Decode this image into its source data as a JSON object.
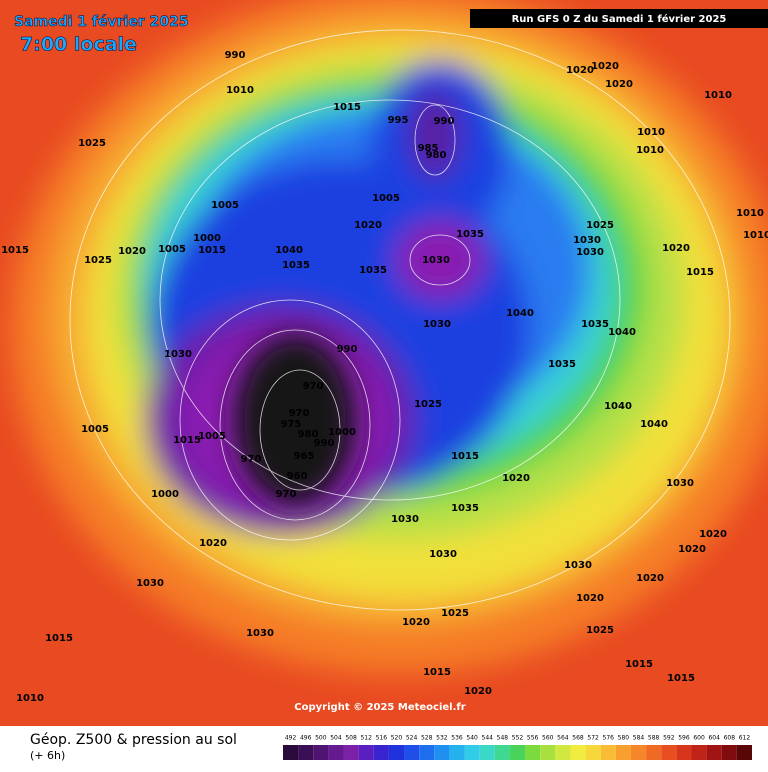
{
  "header": {
    "date": "Samedi 1 février 2025",
    "time": "7:00 locale",
    "run": "Run GFS 0 Z du Samedi 1 février 2025"
  },
  "copyright": "Copyright © 2025 Meteociel.fr",
  "footer": {
    "title": "Géop. Z500 & pression au sol",
    "lead": "(+ 6h)"
  },
  "legend": {
    "ticks": [
      492,
      496,
      500,
      504,
      508,
      512,
      516,
      520,
      524,
      528,
      532,
      536,
      540,
      544,
      548,
      552,
      556,
      560,
      564,
      568,
      572,
      576,
      580,
      584,
      588,
      592,
      596,
      600,
      604,
      608,
      612
    ],
    "colors": [
      "#2a0a3a",
      "#3b0f55",
      "#4f1472",
      "#661a8f",
      "#7d20a8",
      "#5b1ec0",
      "#3a24d0",
      "#1f32dc",
      "#1f4fe8",
      "#1e6ef0",
      "#2090f0",
      "#25b0ee",
      "#30cce8",
      "#3bd8c8",
      "#40d890",
      "#4ad35a",
      "#7ada3e",
      "#a8e040",
      "#d0e840",
      "#f0ec40",
      "#f7d83a",
      "#f8bc35",
      "#f7a030",
      "#f5862a",
      "#f06a25",
      "#e84e20",
      "#d8361c",
      "#c02418",
      "#a01414",
      "#800c10",
      "#580608"
    ]
  },
  "isobars": [
    "990",
    "1010",
    "1025",
    "1015",
    "1025",
    "1020",
    "1005",
    "1005",
    "1000",
    "1015",
    "1040",
    "1035",
    "1020",
    "1005",
    "1035",
    "1030",
    "1035",
    "985",
    "980",
    "990",
    "995",
    "1015",
    "1020",
    "1020",
    "1020",
    "1010",
    "1010",
    "1010",
    "1025",
    "1030",
    "1030",
    "1020",
    "1015",
    "1010",
    "1010",
    "1040",
    "1030",
    "1035",
    "1040",
    "1035",
    "1040",
    "1040",
    "1030",
    "990",
    "970",
    "970",
    "975",
    "980",
    "990",
    "1000",
    "965",
    "970",
    "960",
    "970",
    "1005",
    "1015",
    "1005",
    "1000",
    "1025",
    "1015",
    "1020",
    "1035",
    "1030",
    "1030",
    "1030",
    "1020",
    "1030",
    "1020",
    "1020",
    "1030",
    "1020",
    "1020",
    "1025",
    "1020",
    "1025",
    "1015",
    "1030",
    "1015",
    "1015",
    "1015",
    "1020",
    "1010"
  ]
}
